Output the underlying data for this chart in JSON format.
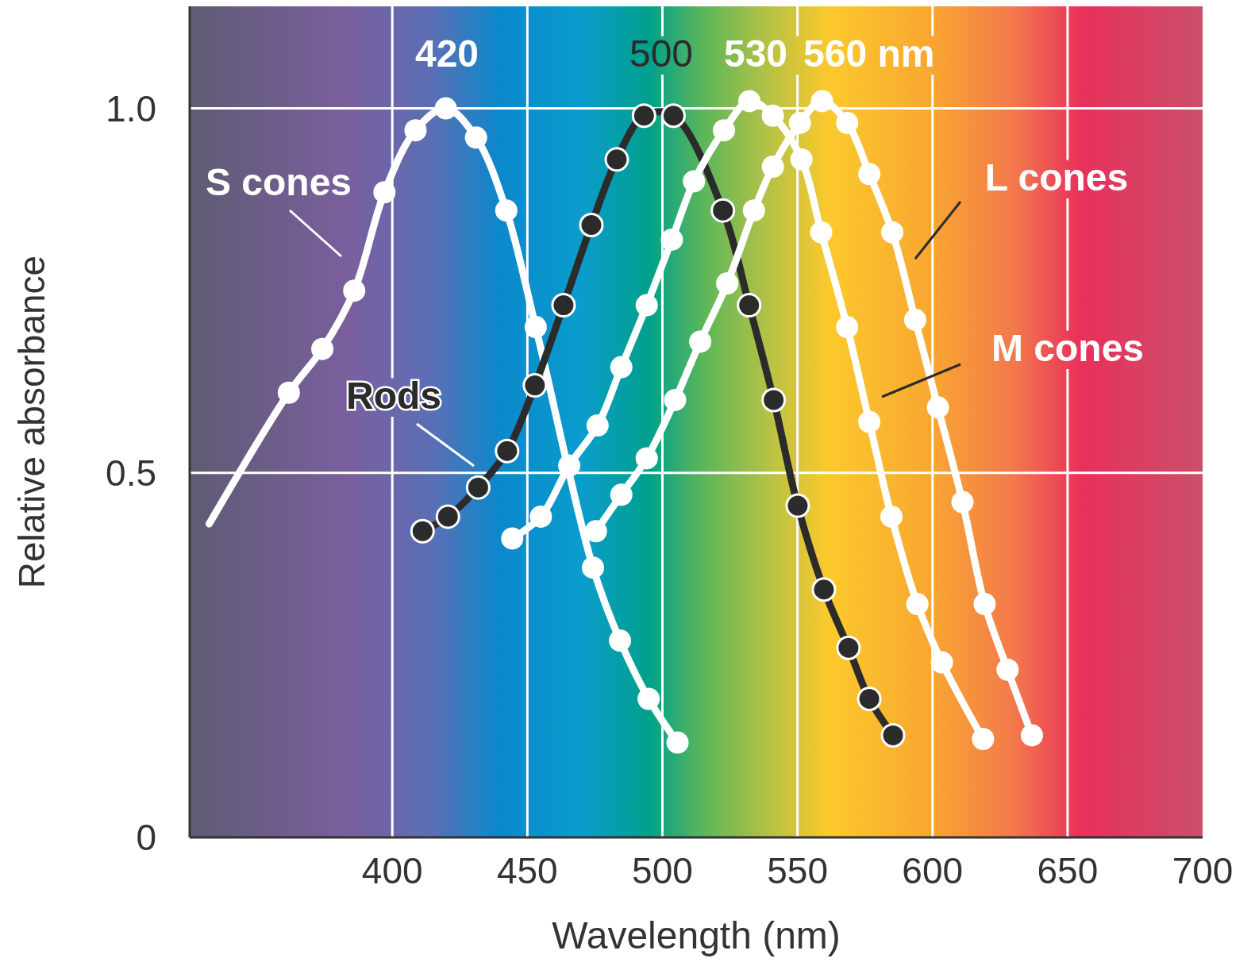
{
  "chart_data": {
    "type": "line",
    "xlabel": "Wavelength (nm)",
    "ylabel": "Relative absorbance",
    "xlim": [
      325,
      700
    ],
    "xticks": [
      400,
      450,
      500,
      550,
      600,
      650,
      700
    ],
    "ylim": [
      0,
      1.14
    ],
    "yticks": [
      0,
      0.5,
      {
        "value": 1,
        "label": "1.0"
      }
    ],
    "grid": true,
    "line_style": "solid",
    "series": [
      {
        "marker": "none",
        "color": "#ffffff",
        "x": [
          332.2,
          361.7,
          374.1,
          385.9,
          397.1,
          408.6,
          419.8,
          431.0,
          442.2,
          453.1,
          474.3,
          484.3,
          494.9,
          505.6
        ],
        "values": [
          0.43,
          0.61,
          0.67,
          0.75,
          0.885,
          0.97,
          1.0,
          0.96,
          0.86,
          0.7,
          0.37,
          0.27,
          0.19,
          0.13
        ]
      },
      {
        "marker": "none",
        "color": "#2b2b2b",
        "x": [
          411.2,
          420.6,
          431.8,
          442.5,
          452.8,
          463.4,
          473.7,
          483.1,
          493.2,
          504.1,
          522.4,
          532.1,
          541.2,
          550.1,
          559.8,
          568.9,
          576.6,
          585.4
        ],
        "values": [
          0.42,
          0.44,
          0.48,
          0.53,
          0.62,
          0.73,
          0.84,
          0.93,
          0.99,
          0.99,
          0.86,
          0.73,
          0.6,
          0.455,
          0.34,
          0.26,
          0.19,
          0.14
        ]
      },
      {
        "marker": "none",
        "color": "#ffffff",
        "x": [
          444.4,
          455.0,
          465.5,
          476.0,
          484.8,
          494.2,
          503.5,
          511.7,
          522.8,
          532.2,
          540.9,
          551.5,
          558.8,
          568.4,
          576.6,
          584.8,
          594.4,
          603.5,
          618.7
        ],
        "values": [
          0.41,
          0.44,
          0.51,
          0.565,
          0.645,
          0.73,
          0.82,
          0.9,
          0.97,
          1.01,
          0.99,
          0.93,
          0.83,
          0.7,
          0.57,
          0.44,
          0.32,
          0.24,
          0.135
        ]
      },
      {
        "marker": "none",
        "color": "#ffffff",
        "x": [
          475.4,
          484.8,
          494.2,
          504.7,
          514.0,
          524.0,
          533.9,
          540.9,
          550.9,
          559.1,
          568.4,
          576.6,
          585.1,
          593.6,
          602.0,
          611.1,
          619.3,
          627.8,
          636.8
        ],
        "values": [
          0.42,
          0.47,
          0.52,
          0.6,
          0.68,
          0.76,
          0.86,
          0.92,
          0.98,
          1.01,
          0.98,
          0.91,
          0.83,
          0.71,
          0.59,
          0.46,
          0.32,
          0.23,
          0.14
        ]
      },
      {
        "type": "scatter",
        "marker": "circle",
        "color": "#ffffff",
        "x": [
          361.7,
          374.1,
          385.9,
          397.1,
          408.6,
          419.8,
          431.0,
          442.2,
          453.1,
          474.3,
          484.3,
          494.9,
          505.6
        ],
        "values": [
          0.61,
          0.67,
          0.75,
          0.885,
          0.97,
          1.0,
          0.96,
          0.86,
          0.7,
          0.37,
          0.27,
          0.19,
          0.13
        ]
      },
      {
        "type": "scatter",
        "marker": "circle",
        "color": "#2b2b2b",
        "x": [
          411.2,
          420.6,
          431.8,
          442.5,
          452.8,
          463.4,
          473.7,
          483.1,
          493.2,
          504.1,
          522.4,
          532.1,
          541.2,
          550.1,
          559.8,
          568.9,
          576.6,
          585.4
        ],
        "values": [
          0.42,
          0.44,
          0.48,
          0.53,
          0.62,
          0.73,
          0.84,
          0.93,
          0.99,
          0.99,
          0.86,
          0.73,
          0.6,
          0.455,
          0.34,
          0.26,
          0.19,
          0.14
        ]
      },
      {
        "type": "scatter",
        "marker": "circle",
        "color": "#ffffff",
        "x": [
          444.4,
          455.0,
          465.5,
          476.0,
          484.8,
          494.2,
          503.5,
          511.7,
          522.8,
          532.2,
          540.9,
          551.5,
          558.8,
          568.4,
          576.6,
          584.8,
          594.4,
          603.5,
          618.7
        ],
        "values": [
          0.41,
          0.44,
          0.51,
          0.565,
          0.645,
          0.73,
          0.82,
          0.9,
          0.97,
          1.01,
          0.99,
          0.93,
          0.83,
          0.7,
          0.57,
          0.44,
          0.32,
          0.24,
          0.135
        ]
      },
      {
        "type": "scatter",
        "marker": "circle",
        "color": "#ffffff",
        "x": [
          475.4,
          484.8,
          494.2,
          504.7,
          514.0,
          524.0,
          533.9,
          540.9,
          550.9,
          559.1,
          568.4,
          576.6,
          585.1,
          593.6,
          602.0,
          611.1,
          619.3,
          627.8,
          636.8
        ],
        "values": [
          0.42,
          0.47,
          0.52,
          0.6,
          0.68,
          0.76,
          0.86,
          0.92,
          0.98,
          1.01,
          0.98,
          0.91,
          0.83,
          0.71,
          0.59,
          0.46,
          0.32,
          0.23,
          0.14
        ]
      }
    ],
    "annotations": [
      "420",
      "500",
      "530",
      "560 nm",
      "S cones",
      "Rods",
      "L cones",
      "M cones"
    ]
  }
}
